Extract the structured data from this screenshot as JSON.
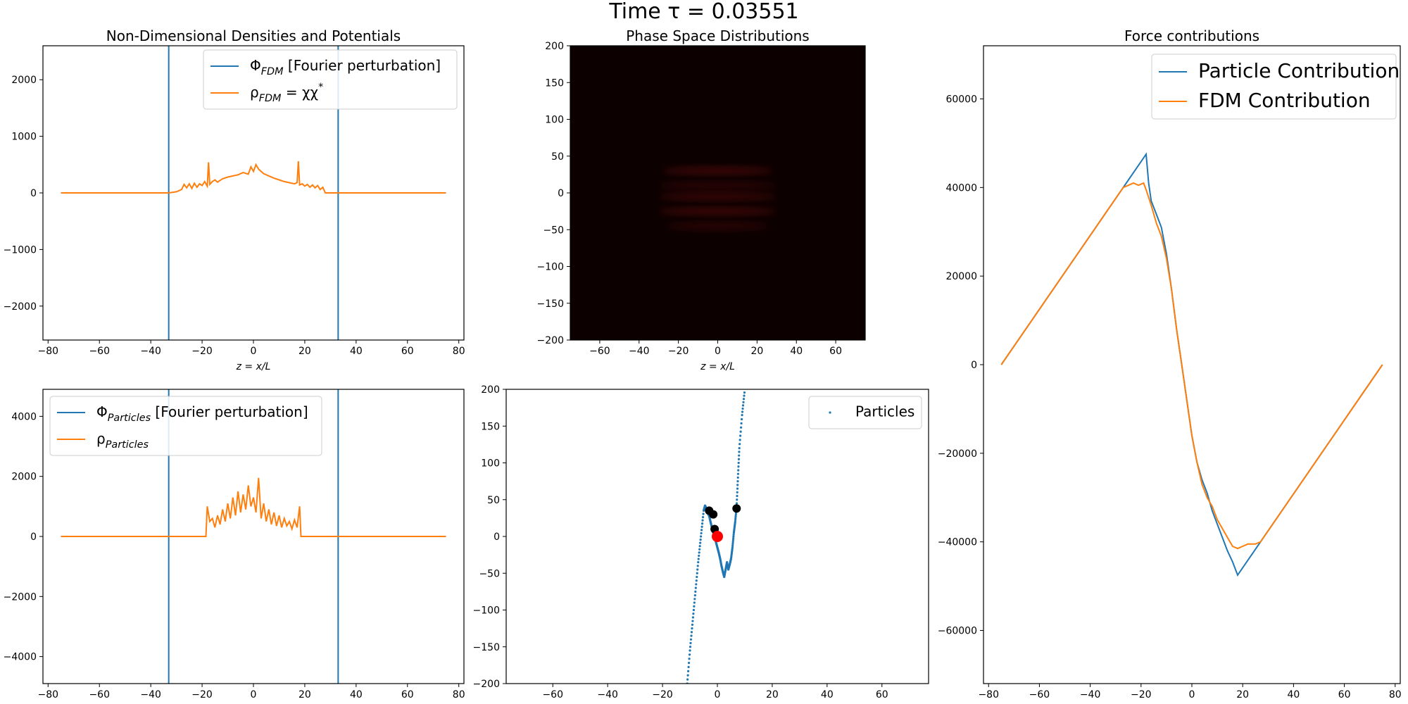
{
  "figure": {
    "suptitle": "Time τ = 0.03551"
  },
  "colors": {
    "blue": "#1f77b4",
    "orange": "#ff7f0e",
    "marker_black": "#000000",
    "marker_red": "#ff0000",
    "phase_bg": "#0d0000",
    "phase_glow": "#8a1414"
  },
  "chart_data": [
    {
      "id": "fdm-densities",
      "type": "line",
      "title": "Non-Dimensional Densities and Potentials",
      "xlabel": "z = x/L",
      "ylabel": "",
      "xlim": [
        -82,
        82
      ],
      "ylim": [
        -2600,
        2600
      ],
      "xticks": [
        -80,
        -60,
        -40,
        -20,
        0,
        20,
        40,
        60,
        80
      ],
      "yticks": [
        -2000,
        -1000,
        0,
        1000,
        2000
      ],
      "legend_position": "top-right",
      "series": [
        {
          "name": "Φ_FDM [Fourier perturbation]",
          "color": "blue",
          "vlines": [
            -33,
            33
          ]
        },
        {
          "name": "ρ_FDM = χχ*",
          "color": "orange",
          "x": [
            -75,
            -33,
            -30,
            -28,
            -27,
            -26,
            -25,
            -24,
            -23,
            -22,
            -21,
            -20,
            -19,
            -18,
            -17.5,
            -17,
            -16,
            -15,
            -14,
            -13,
            -12,
            -10,
            -8,
            -6,
            -4,
            -2,
            -1,
            0,
            1,
            2,
            3,
            4,
            6,
            8,
            10,
            12,
            14,
            16,
            17,
            17.5,
            18,
            19,
            20,
            21,
            22,
            23,
            24,
            25,
            26,
            27,
            28,
            75
          ],
          "y": [
            0,
            0,
            20,
            60,
            150,
            90,
            160,
            80,
            170,
            100,
            160,
            130,
            200,
            120,
            540,
            150,
            200,
            230,
            190,
            220,
            250,
            280,
            300,
            320,
            360,
            330,
            460,
            380,
            500,
            420,
            380,
            340,
            300,
            260,
            230,
            200,
            180,
            160,
            180,
            560,
            140,
            160,
            120,
            150,
            100,
            140,
            90,
            130,
            60,
            100,
            0,
            0
          ]
        }
      ]
    },
    {
      "id": "phase-space-fdm",
      "type": "heatmap",
      "title": "Phase Space Distributions",
      "xlabel": "z = x/L",
      "ylabel": "",
      "xlim": [
        -75,
        75
      ],
      "ylim": [
        -200,
        200
      ],
      "xticks": [
        -60,
        -40,
        -20,
        0,
        20,
        40,
        60
      ],
      "yticks": [
        -200,
        -150,
        -100,
        -50,
        0,
        50,
        100,
        150,
        200
      ],
      "bands": [
        {
          "v": 30,
          "x_halfwidth": 28,
          "strength": 0.9
        },
        {
          "v": 10,
          "x_halfwidth": 30,
          "strength": 0.55
        },
        {
          "v": -5,
          "x_halfwidth": 30,
          "strength": 0.8
        },
        {
          "v": -25,
          "x_halfwidth": 30,
          "strength": 0.9
        },
        {
          "v": -45,
          "x_halfwidth": 26,
          "strength": 0.55
        }
      ]
    },
    {
      "id": "force-contributions",
      "type": "line",
      "title": "Force contributions",
      "xlabel": "",
      "ylabel": "",
      "xlim": [
        -82,
        82
      ],
      "ylim": [
        -72000,
        72000
      ],
      "xticks": [
        -80,
        -60,
        -40,
        -20,
        0,
        20,
        40,
        60,
        80
      ],
      "yticks": [
        -60000,
        -40000,
        -20000,
        0,
        20000,
        40000,
        60000
      ],
      "legend_position": "top-right",
      "series": [
        {
          "name": "Particle Contribution",
          "color": "blue",
          "x": [
            -75,
            -18,
            -17,
            -16,
            -14,
            -12,
            -10,
            -8,
            -6,
            -4,
            -2,
            0,
            2,
            4,
            6,
            8,
            10,
            12,
            14,
            16,
            18,
            75
          ],
          "y": [
            0,
            47500,
            41000,
            37000,
            34000,
            31000,
            25000,
            17000,
            8000,
            0,
            -8000,
            -16000,
            -22000,
            -26000,
            -29000,
            -33000,
            -36000,
            -39000,
            -42000,
            -44500,
            -47500,
            0
          ]
        },
        {
          "name": "FDM Contribution",
          "color": "orange",
          "x": [
            -75,
            -27,
            -25,
            -23,
            -21,
            -19,
            -18,
            -16,
            -14,
            -12,
            -10,
            -8,
            -6,
            -4,
            -2,
            0,
            2,
            4,
            6,
            8,
            10,
            12,
            14,
            16,
            18,
            20,
            22,
            25,
            27,
            75
          ],
          "y": [
            0,
            40000,
            40500,
            41000,
            40500,
            41000,
            39500,
            36000,
            32000,
            29000,
            24000,
            17000,
            8000,
            0,
            -8000,
            -16000,
            -22000,
            -27000,
            -30000,
            -32000,
            -35000,
            -37000,
            -39000,
            -41000,
            -41500,
            -41000,
            -40500,
            -40500,
            -40000,
            0
          ]
        }
      ]
    },
    {
      "id": "particle-densities",
      "type": "line",
      "title": "",
      "xlabel": "",
      "ylabel": "",
      "xlim": [
        -82,
        82
      ],
      "ylim": [
        -4900,
        4900
      ],
      "xticks": [
        -80,
        -60,
        -40,
        -20,
        0,
        20,
        40,
        60,
        80
      ],
      "yticks": [
        -4000,
        -2000,
        0,
        2000,
        4000
      ],
      "legend_position": "top-left",
      "series": [
        {
          "name": "Φ_Particles [Fourier perturbation]",
          "color": "blue",
          "vlines": [
            -33,
            33
          ]
        },
        {
          "name": "ρ_Particles",
          "color": "orange",
          "x": [
            -75,
            -18.5,
            -18,
            -17,
            -16,
            -15,
            -14,
            -13,
            -12,
            -11,
            -10,
            -9,
            -8,
            -7,
            -6,
            -5,
            -4,
            -3,
            -2,
            -1,
            0,
            1,
            2,
            3,
            4,
            5,
            6,
            7,
            8,
            9,
            10,
            11,
            12,
            13,
            14,
            15,
            16,
            17,
            18,
            18.5,
            75
          ],
          "y": [
            0,
            0,
            1000,
            500,
            600,
            300,
            700,
            400,
            900,
            500,
            1100,
            600,
            1300,
            700,
            1500,
            800,
            1400,
            900,
            1700,
            1000,
            1300,
            800,
            1950,
            600,
            1100,
            500,
            900,
            400,
            800,
            350,
            700,
            300,
            600,
            350,
            500,
            250,
            550,
            300,
            1000,
            0,
            0
          ]
        }
      ]
    },
    {
      "id": "phase-space-particles",
      "type": "scatter",
      "title": "",
      "xlabel": "",
      "ylabel": "",
      "xlim": [
        -77,
        77
      ],
      "ylim": [
        -200,
        200
      ],
      "xticks": [
        -60,
        -40,
        -20,
        0,
        20,
        40,
        60
      ],
      "yticks": [
        -200,
        -150,
        -100,
        -50,
        0,
        50,
        100,
        150,
        200
      ],
      "legend_position": "top-right",
      "series": [
        {
          "name": "Particles",
          "color": "blue",
          "x": [
            -11,
            -10,
            -9,
            -8,
            -7,
            -6,
            -5,
            -4.5,
            -4,
            -3.5,
            -3,
            -2.5,
            -2,
            -1.5,
            -1,
            -0.5,
            0,
            0.5,
            1,
            1.5,
            2,
            2.5,
            3,
            3.5,
            4,
            4.5,
            5,
            5.5,
            6,
            6.5,
            7,
            7.5,
            8,
            9,
            10
          ],
          "y": [
            -200,
            -155,
            -115,
            -75,
            -35,
            0,
            35,
            42,
            38,
            32,
            28,
            20,
            12,
            5,
            0,
            -8,
            -15,
            -22,
            -30,
            -40,
            -48,
            -55,
            -45,
            -35,
            -45,
            -38,
            -30,
            -15,
            5,
            20,
            40,
            80,
            120,
            165,
            200
          ]
        }
      ],
      "markers": [
        {
          "x": -3,
          "y": 35,
          "color": "marker_black",
          "size": 6
        },
        {
          "x": -1.5,
          "y": 30,
          "color": "marker_black",
          "size": 6
        },
        {
          "x": -1,
          "y": 10,
          "color": "marker_black",
          "size": 6
        },
        {
          "x": 7,
          "y": 38,
          "color": "marker_black",
          "size": 6
        },
        {
          "x": 0,
          "y": 0,
          "color": "marker_red",
          "size": 8
        }
      ]
    }
  ]
}
